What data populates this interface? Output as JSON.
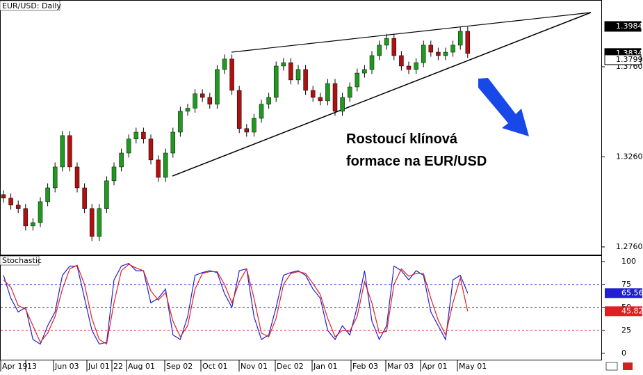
{
  "chart_data": [
    {
      "type": "candlestick",
      "title": "EUR/USD: Daily",
      "open": [
        1.305,
        1.3031,
        1.2992,
        1.2973,
        1.2876,
        1.2895,
        1.3011,
        1.3088,
        1.3204,
        1.3378,
        1.3204,
        1.3088,
        1.2973,
        1.2818,
        1.2973,
        1.3127,
        1.3204,
        1.3281,
        1.3359,
        1.3397,
        1.3359,
        1.3243,
        1.3146,
        1.3281,
        1.3397,
        1.3513,
        1.353,
        1.361,
        1.359,
        1.3552,
        1.3745,
        1.3803,
        1.3629,
        1.3417,
        1.3397,
        1.3474,
        1.3552,
        1.359,
        1.3764,
        1.3783,
        1.3687,
        1.3745,
        1.3629,
        1.359,
        1.3571,
        1.3667,
        1.3513,
        1.359,
        1.3648,
        1.3725,
        1.3745,
        1.3822,
        1.388,
        1.3918,
        1.3822,
        1.3764,
        1.3745,
        1.3783,
        1.388,
        1.3841,
        1.3822,
        1.3841,
        1.388,
        1.3957
      ],
      "high": [
        1.3075,
        1.3056,
        1.3017,
        1.2998,
        1.292,
        1.3036,
        1.3113,
        1.3229,
        1.3403,
        1.3403,
        1.3229,
        1.3113,
        1.2998,
        1.2998,
        1.3152,
        1.3229,
        1.3306,
        1.3384,
        1.3422,
        1.3422,
        1.3384,
        1.3268,
        1.3306,
        1.3422,
        1.3538,
        1.3555,
        1.3635,
        1.3635,
        1.3615,
        1.377,
        1.3828,
        1.3828,
        1.3654,
        1.3442,
        1.3499,
        1.3577,
        1.3615,
        1.3789,
        1.3808,
        1.3808,
        1.377,
        1.377,
        1.3654,
        1.3615,
        1.3692,
        1.3692,
        1.3615,
        1.3673,
        1.375,
        1.377,
        1.3847,
        1.3905,
        1.3943,
        1.3943,
        1.3847,
        1.3789,
        1.3808,
        1.3905,
        1.3905,
        1.3866,
        1.3866,
        1.3905,
        1.3982,
        1.3982
      ],
      "low": [
        1.3006,
        1.2967,
        1.2948,
        1.2851,
        1.2851,
        1.287,
        1.2986,
        1.3063,
        1.3179,
        1.3179,
        1.3063,
        1.2948,
        1.2793,
        1.2793,
        1.2948,
        1.3102,
        1.3179,
        1.3256,
        1.3334,
        1.3334,
        1.3218,
        1.3121,
        1.3121,
        1.3256,
        1.3372,
        1.3488,
        1.3505,
        1.3565,
        1.3527,
        1.3527,
        1.372,
        1.3604,
        1.3392,
        1.3372,
        1.3372,
        1.3449,
        1.3527,
        1.3565,
        1.3739,
        1.3662,
        1.3662,
        1.3604,
        1.3565,
        1.3546,
        1.3546,
        1.3488,
        1.3488,
        1.3565,
        1.3623,
        1.37,
        1.372,
        1.3797,
        1.3855,
        1.3797,
        1.3739,
        1.372,
        1.372,
        1.3758,
        1.3816,
        1.3797,
        1.3797,
        1.3816,
        1.3855,
        1.3809
      ],
      "close": [
        1.3031,
        1.2992,
        1.2973,
        1.2876,
        1.2895,
        1.3011,
        1.3088,
        1.3204,
        1.3378,
        1.3204,
        1.3088,
        1.2973,
        1.2818,
        1.2973,
        1.3127,
        1.3204,
        1.3281,
        1.3359,
        1.3397,
        1.3359,
        1.3243,
        1.3146,
        1.3281,
        1.3397,
        1.3513,
        1.353,
        1.361,
        1.359,
        1.3552,
        1.3745,
        1.3803,
        1.3629,
        1.3417,
        1.3397,
        1.3474,
        1.3552,
        1.359,
        1.3764,
        1.3783,
        1.3687,
        1.3745,
        1.3629,
        1.359,
        1.3571,
        1.3667,
        1.3513,
        1.359,
        1.3648,
        1.3725,
        1.3745,
        1.3822,
        1.388,
        1.3918,
        1.3822,
        1.3764,
        1.3745,
        1.3783,
        1.388,
        1.3841,
        1.3822,
        1.3841,
        1.388,
        1.3957,
        1.3834
      ],
      "up_color": "#1f9a1f",
      "down_color": "#b01010",
      "ylim": [
        1.2721,
        1.4123
      ],
      "yticks": [
        {
          "value": 1.376,
          "label": "1.3760"
        },
        {
          "value": 1.326,
          "label": "1.3260"
        },
        {
          "value": 1.276,
          "label": "1.2760"
        }
      ],
      "price_markers": [
        {
          "value": 1.3984,
          "style": "dark"
        },
        {
          "value": 1.3834,
          "style": "dark"
        },
        {
          "value": 1.3799,
          "style": "light"
        }
      ],
      "annotation": [
        "Rostoucí klínová",
        "formace na EUR/USD"
      ],
      "x_labels": [
        "Apr 19",
        "13",
        "Jun 03",
        "Jul 01",
        "22",
        "Aug 01",
        "Sep 02",
        "Oct 01",
        "Nov 01",
        "Dec 02",
        "Jan 01",
        "Feb 03",
        "Mar 03",
        "Apr 01",
        "May 01"
      ]
    },
    {
      "type": "line",
      "title": "Stochastic",
      "series": [
        {
          "color": "#2020d0",
          "values": [
            85,
            60,
            45,
            50,
            15,
            10,
            30,
            45,
            85,
            95,
            95,
            60,
            25,
            10,
            12,
            80,
            95,
            98,
            90,
            90,
            55,
            60,
            70,
            20,
            15,
            40,
            85,
            88,
            90,
            88,
            65,
            50,
            90,
            92,
            40,
            15,
            20,
            50,
            85,
            88,
            90,
            85,
            70,
            60,
            25,
            15,
            30,
            20,
            50,
            90,
            35,
            15,
            30,
            95,
            90,
            80,
            90,
            85,
            45,
            30,
            15,
            80,
            85,
            65.56
          ]
        },
        {
          "color": "#e02020",
          "values": [
            80,
            72,
            52,
            48,
            30,
            12,
            22,
            40,
            70,
            92,
            96,
            75,
            38,
            15,
            10,
            55,
            90,
            97,
            93,
            90,
            68,
            58,
            66,
            35,
            18,
            30,
            70,
            87,
            89,
            89,
            75,
            55,
            78,
            92,
            60,
            22,
            18,
            38,
            75,
            87,
            89,
            87,
            76,
            64,
            38,
            18,
            25,
            24,
            40,
            78,
            55,
            22,
            24,
            75,
            92,
            84,
            87,
            87,
            60,
            36,
            20,
            55,
            82,
            45.82
          ]
        }
      ],
      "ylim": [
        -7,
        106
      ],
      "yticks": [
        100,
        75,
        50,
        25,
        0
      ],
      "levels": [
        {
          "value": 75,
          "color": "#2020d0"
        },
        {
          "value": 50,
          "color": "#333333"
        },
        {
          "value": 25,
          "color": "#e02020"
        }
      ]
    }
  ]
}
